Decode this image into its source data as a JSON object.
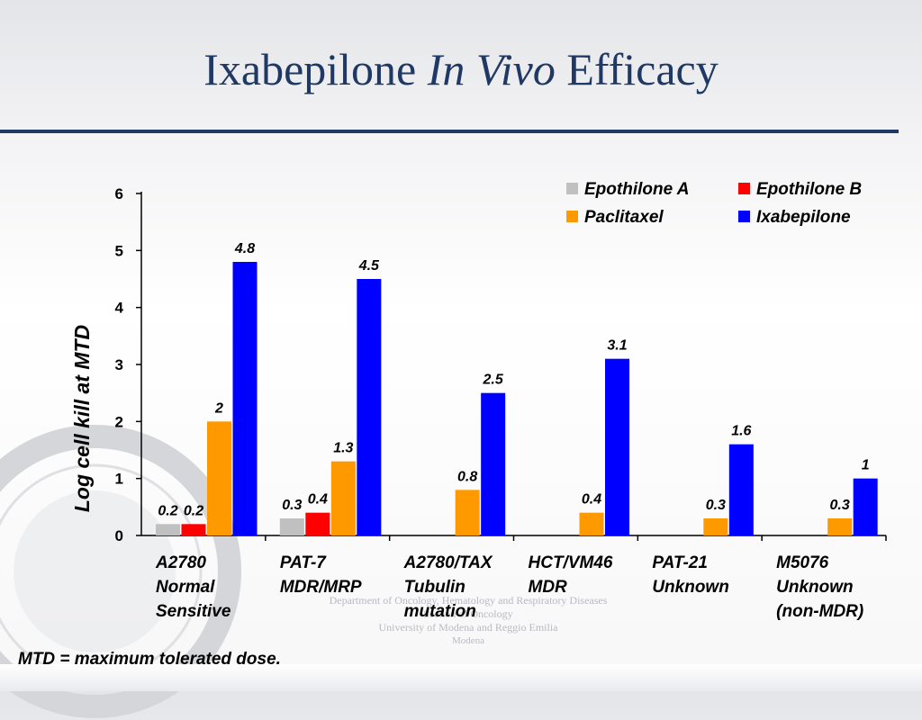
{
  "slide": {
    "title_part1": "Ixabepilone ",
    "title_italic": "In Vivo",
    "title_part2": " Efficacy",
    "footnote": "MTD = maximum tolerated dose."
  },
  "watermark": {
    "line1": "Department of Oncology, Hematology and Respiratory Diseases",
    "line2": "Section of Oncology",
    "line3": "University of Modena and Reggio Emilia",
    "line4": "Modena"
  },
  "chart_data": {
    "type": "bar",
    "ylabel": "Log cell kill at MTD",
    "ylim": [
      0,
      6
    ],
    "yticks": [
      "0",
      "1",
      "2",
      "3",
      "4",
      "5",
      "6"
    ],
    "grid": false,
    "legend_position": "top-right",
    "categories": [
      [
        "A2780",
        "Normal",
        "Sensitive"
      ],
      [
        "PAT-7",
        "MDR/MRP"
      ],
      [
        "A2780/TAX",
        "Tubulin",
        "mutation"
      ],
      [
        "HCT/VM46",
        "MDR"
      ],
      [
        "PAT-21",
        "Unknown"
      ],
      [
        "M5076",
        "Unknown",
        "(non-MDR)"
      ]
    ],
    "series": [
      {
        "name": "Epothilone A",
        "color": "#c0c0c0",
        "values": [
          0.2,
          0.3,
          null,
          null,
          null,
          null
        ],
        "labels": [
          "0.2",
          "0.3",
          "",
          "",
          "",
          ""
        ]
      },
      {
        "name": "Epothilone B",
        "color": "#ff0000",
        "values": [
          0.2,
          0.4,
          null,
          null,
          null,
          null
        ],
        "labels": [
          "0.2",
          "0.4",
          "",
          "",
          "",
          ""
        ]
      },
      {
        "name": "Paclitaxel",
        "color": "#ff9900",
        "values": [
          2,
          1.3,
          0.8,
          0.4,
          0.3,
          0.3
        ],
        "labels": [
          "2",
          "1.3",
          "0.8",
          "0.4",
          "0.3",
          "0.3"
        ]
      },
      {
        "name": "Ixabepilone",
        "color": "#0000ff",
        "values": [
          4.8,
          4.5,
          2.5,
          3.1,
          1.6,
          1
        ],
        "labels": [
          "4.8",
          "4.5",
          "2.5",
          "3.1",
          "1.6",
          "1"
        ]
      }
    ]
  }
}
